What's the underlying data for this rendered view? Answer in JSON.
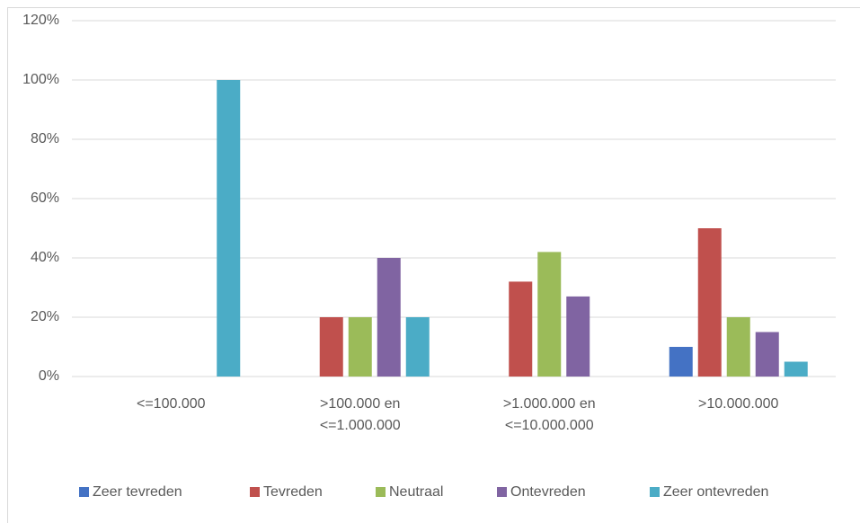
{
  "chart_data": {
    "type": "bar",
    "categories": [
      "<=100.000",
      ">100.000 en\n<=1.000.000",
      ">1.000.000 en\n<=10.000.000",
      ">10.000.000"
    ],
    "series": [
      {
        "name": "Zeer tevreden",
        "color": "#4472c4",
        "values": [
          0,
          0,
          0,
          10
        ]
      },
      {
        "name": "Tevreden",
        "color": "#c0504d",
        "values": [
          0,
          20,
          32,
          50
        ]
      },
      {
        "name": "Neutraal",
        "color": "#9bbb59",
        "values": [
          0,
          20,
          42,
          20
        ]
      },
      {
        "name": "Ontevreden",
        "color": "#8064a2",
        "values": [
          0,
          40,
          27,
          15
        ]
      },
      {
        "name": "Zeer ontevreden",
        "color": "#4bacc6",
        "values": [
          100,
          20,
          0,
          5
        ]
      }
    ],
    "ylim": [
      0,
      120
    ],
    "yticks": [
      {
        "value": 0,
        "label": "0%"
      },
      {
        "value": 20,
        "label": "20%"
      },
      {
        "value": 40,
        "label": "40%"
      },
      {
        "value": 60,
        "label": "60%"
      },
      {
        "value": 80,
        "label": "80%"
      },
      {
        "value": 100,
        "label": "100%"
      },
      {
        "value": 120,
        "label": "120%"
      }
    ],
    "grid": true,
    "legend": "bottom"
  }
}
